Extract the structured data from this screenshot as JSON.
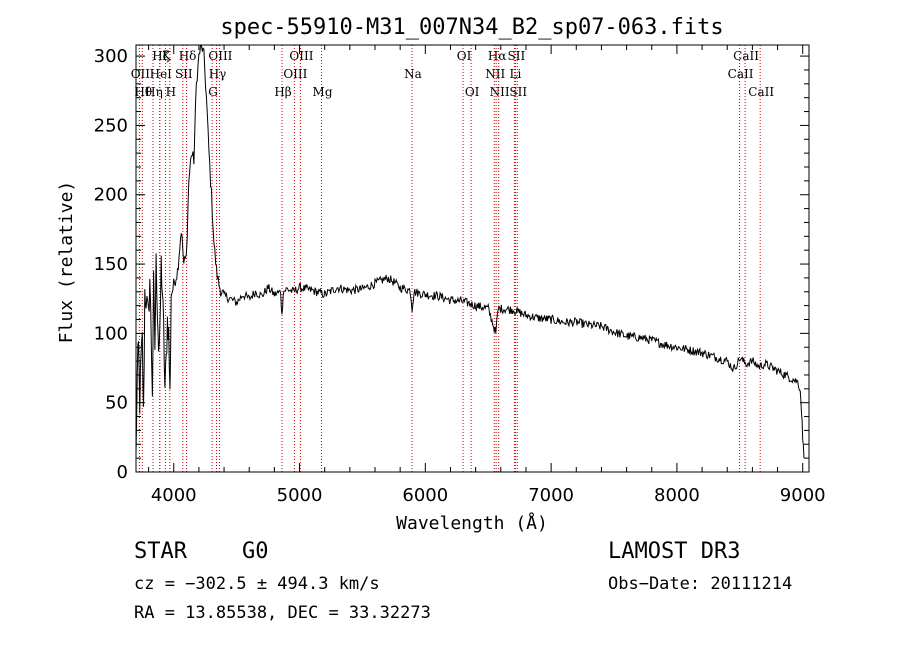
{
  "chart_data": {
    "type": "line",
    "title": "spec-55910-M31_007N34_B2_sp07-063.fits",
    "xlabel": "Wavelength (Å)",
    "ylabel": "Flux (relative)",
    "xlim": [
      3700,
      9050
    ],
    "ylim": [
      0,
      308
    ],
    "xticks": [
      4000,
      5000,
      6000,
      7000,
      8000,
      9000
    ],
    "yticks": [
      0,
      50,
      100,
      150,
      200,
      250,
      300
    ],
    "spectrum_keypoints": [
      [
        3700,
        10
      ],
      [
        3710,
        70
      ],
      [
        3720,
        90
      ],
      [
        3730,
        50
      ],
      [
        3740,
        80
      ],
      [
        3750,
        95
      ],
      [
        3760,
        40
      ],
      [
        3770,
        130
      ],
      [
        3780,
        125
      ],
      [
        3800,
        110
      ],
      [
        3810,
        140
      ],
      [
        3830,
        60
      ],
      [
        3840,
        135
      ],
      [
        3850,
        90
      ],
      [
        3860,
        150
      ],
      [
        3870,
        120
      ],
      [
        3880,
        90
      ],
      [
        3890,
        95
      ],
      [
        3900,
        150
      ],
      [
        3910,
        130
      ],
      [
        3920,
        100
      ],
      [
        3930,
        60
      ],
      [
        3940,
        80
      ],
      [
        3950,
        110
      ],
      [
        3960,
        100
      ],
      [
        3970,
        55
      ],
      [
        3980,
        130
      ],
      [
        4000,
        135
      ],
      [
        4030,
        145
      ],
      [
        4060,
        175
      ],
      [
        4080,
        150
      ],
      [
        4100,
        155
      ],
      [
        4120,
        210
      ],
      [
        4140,
        230
      ],
      [
        4160,
        225
      ],
      [
        4180,
        280
      ],
      [
        4200,
        300
      ],
      [
        4220,
        308
      ],
      [
        4240,
        300
      ],
      [
        4260,
        270
      ],
      [
        4280,
        230
      ],
      [
        4300,
        200
      ],
      [
        4320,
        165
      ],
      [
        4340,
        145
      ],
      [
        4360,
        135
      ],
      [
        4380,
        130
      ],
      [
        4400,
        127
      ],
      [
        4450,
        125
      ],
      [
        4500,
        122
      ],
      [
        4550,
        128
      ],
      [
        4600,
        125
      ],
      [
        4650,
        130
      ],
      [
        4700,
        127
      ],
      [
        4750,
        133
      ],
      [
        4800,
        128
      ],
      [
        4850,
        130
      ],
      [
        4860,
        112
      ],
      [
        4870,
        130
      ],
      [
        4900,
        132
      ],
      [
        4950,
        130
      ],
      [
        5000,
        133
      ],
      [
        5100,
        131
      ],
      [
        5200,
        128
      ],
      [
        5300,
        133
      ],
      [
        5400,
        131
      ],
      [
        5500,
        132
      ],
      [
        5600,
        136
      ],
      [
        5700,
        140
      ],
      [
        5750,
        137
      ],
      [
        5800,
        133
      ],
      [
        5880,
        131
      ],
      [
        5895,
        118
      ],
      [
        5910,
        130
      ],
      [
        6000,
        128
      ],
      [
        6100,
        127
      ],
      [
        6200,
        124
      ],
      [
        6300,
        123
      ],
      [
        6400,
        120
      ],
      [
        6500,
        118
      ],
      [
        6560,
        100
      ],
      [
        6580,
        118
      ],
      [
        6700,
        117
      ],
      [
        6800,
        113
      ],
      [
        6900,
        111
      ],
      [
        7000,
        110
      ],
      [
        7100,
        108
      ],
      [
        7200,
        108
      ],
      [
        7300,
        106
      ],
      [
        7400,
        105
      ],
      [
        7500,
        101
      ],
      [
        7600,
        98
      ],
      [
        7700,
        97
      ],
      [
        7800,
        95
      ],
      [
        7900,
        92
      ],
      [
        8000,
        90
      ],
      [
        8100,
        88
      ],
      [
        8200,
        86
      ],
      [
        8300,
        83
      ],
      [
        8400,
        80
      ],
      [
        8450,
        74
      ],
      [
        8500,
        82
      ],
      [
        8550,
        78
      ],
      [
        8600,
        80
      ],
      [
        8650,
        76
      ],
      [
        8700,
        78
      ],
      [
        8800,
        73
      ],
      [
        8900,
        68
      ],
      [
        8960,
        65
      ],
      [
        8980,
        60
      ],
      [
        8990,
        45
      ],
      [
        9000,
        25
      ],
      [
        9010,
        10
      ]
    ],
    "spectral_lines": [
      {
        "label": "OII",
        "wavelength": 3727,
        "row": 2
      },
      {
        "label": "Hθ",
        "wavelength": 3750,
        "row": 3
      },
      {
        "label": "Hη",
        "wavelength": 3835,
        "row": 3
      },
      {
        "label": "Hζ",
        "wavelength": 3889,
        "row": 1
      },
      {
        "label": "HeI",
        "wavelength": 3889,
        "row": 2
      },
      {
        "label": "K",
        "wavelength": 3934,
        "row": 1
      },
      {
        "label": "SII",
        "wavelength": 4072,
        "row": 2
      },
      {
        "label": "H",
        "wavelength": 3969,
        "row": 3
      },
      {
        "label": "Hδ",
        "wavelength": 4102,
        "row": 1
      },
      {
        "label": "OIII",
        "wavelength": 4363,
        "row": 1
      },
      {
        "label": "Hγ",
        "wavelength": 4340,
        "row": 2
      },
      {
        "label": "G",
        "wavelength": 4305,
        "row": 3
      },
      {
        "label": "Hβ",
        "wavelength": 4861,
        "row": 3
      },
      {
        "label": "OIII",
        "wavelength": 4959,
        "row": 2
      },
      {
        "label": "OIII",
        "wavelength": 5007,
        "row": 1
      },
      {
        "label": "Mg",
        "wavelength": 5175,
        "row": 3
      },
      {
        "label": "Na",
        "wavelength": 5894,
        "row": 2
      },
      {
        "label": "OI",
        "wavelength": 6300,
        "row": 1
      },
      {
        "label": "OI",
        "wavelength": 6364,
        "row": 3
      },
      {
        "label": "NII",
        "wavelength": 6548,
        "row": 2
      },
      {
        "label": "Hα",
        "wavelength": 6563,
        "row": 1
      },
      {
        "label": "NII",
        "wavelength": 6583,
        "row": 3
      },
      {
        "label": "SII",
        "wavelength": 6716,
        "row": 1
      },
      {
        "label": "Li",
        "wavelength": 6708,
        "row": 2
      },
      {
        "label": "SII",
        "wavelength": 6731,
        "row": 3
      },
      {
        "label": "CaII",
        "wavelength": 8498,
        "row": 2
      },
      {
        "label": "CaII",
        "wavelength": 8542,
        "row": 1
      },
      {
        "label": "CaII",
        "wavelength": 8662,
        "row": 3
      }
    ],
    "annotations": {
      "object_class": "STAR",
      "subclass": "G0",
      "survey": "LAMOST DR3",
      "redshift": "cz = −302.5 ± 494.3 km/s",
      "obs_date": "Obs−Date: 20111214",
      "coordinates": "RA =  13.85538, DEC =  33.32273"
    }
  },
  "colors": {
    "line_marker": "#cc0000",
    "spectrum": "#000000"
  }
}
